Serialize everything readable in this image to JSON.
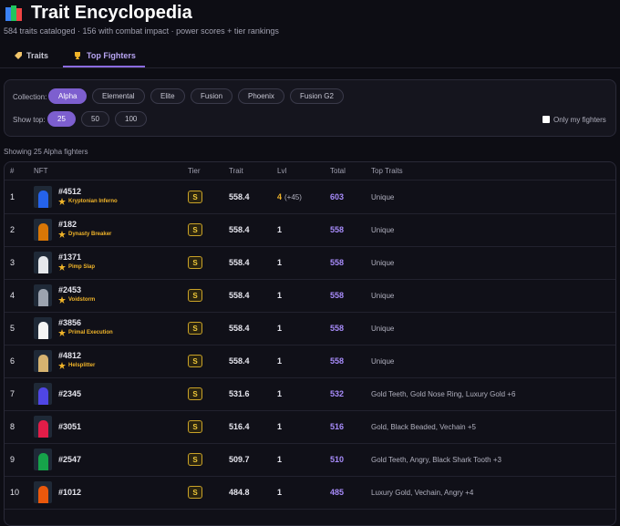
{
  "header": {
    "title": "Trait Encyclopedia",
    "subtitle": "584 traits cataloged · 156 with combat impact · power scores + tier rankings"
  },
  "tabs": [
    {
      "label": "Traits",
      "active": false
    },
    {
      "label": "Top Fighters",
      "active": true
    }
  ],
  "filters": {
    "collection_label": "Collection:",
    "collections": [
      {
        "label": "Alpha",
        "active": true
      },
      {
        "label": "Elemental",
        "active": false
      },
      {
        "label": "Elite",
        "active": false
      },
      {
        "label": "Fusion",
        "active": false
      },
      {
        "label": "Phoenix",
        "active": false
      },
      {
        "label": "Fusion G2",
        "active": false
      }
    ],
    "show_top_label": "Show top:",
    "show_top": [
      {
        "label": "25",
        "active": true
      },
      {
        "label": "50",
        "active": false
      },
      {
        "label": "100",
        "active": false
      }
    ],
    "checkbox_label": "Only my fighters"
  },
  "status": "Showing 25 Alpha fighters",
  "table": {
    "columns": [
      "#",
      "NFT",
      "Tier",
      "Trait",
      "Lvl",
      "Total",
      "Top Traits"
    ],
    "rows": [
      {
        "rank": 1,
        "id": "#4512",
        "title": "Kryptonian Inferno",
        "tier": "S",
        "trait": 558.4,
        "lvl": 4,
        "lvl_bonus": "(+45)",
        "total": 603,
        "top_traits": "Unique"
      },
      {
        "rank": 2,
        "id": "#182",
        "title": "Dynasty Breaker",
        "tier": "S",
        "trait": 558.4,
        "lvl": 1,
        "total": 558,
        "top_traits": "Unique"
      },
      {
        "rank": 3,
        "id": "#1371",
        "title": "Pimp Slap",
        "tier": "S",
        "trait": 558.4,
        "lvl": 1,
        "total": 558,
        "top_traits": "Unique"
      },
      {
        "rank": 4,
        "id": "#2453",
        "title": "Voidstorm",
        "tier": "S",
        "trait": 558.4,
        "lvl": 1,
        "total": 558,
        "top_traits": "Unique"
      },
      {
        "rank": 5,
        "id": "#3856",
        "title": "Primal Execution",
        "tier": "S",
        "trait": 558.4,
        "lvl": 1,
        "total": 558,
        "top_traits": "Unique"
      },
      {
        "rank": 6,
        "id": "#4812",
        "title": "Helsplitter",
        "tier": "S",
        "trait": 558.4,
        "lvl": 1,
        "total": 558,
        "top_traits": "Unique"
      },
      {
        "rank": 7,
        "id": "#2345",
        "tier": "S",
        "trait": 531.6,
        "lvl": 1,
        "total": 532,
        "top_traits": "Gold Teeth, Gold Nose Ring, Luxury Gold +6"
      },
      {
        "rank": 8,
        "id": "#3051",
        "tier": "S",
        "trait": 516.4,
        "lvl": 1,
        "total": 516,
        "top_traits": "Gold, Black Beaded, Vechain +5"
      },
      {
        "rank": 9,
        "id": "#2547",
        "tier": "S",
        "trait": 509.7,
        "lvl": 1,
        "total": 510,
        "top_traits": "Gold Teeth, Angry, Black Shark Tooth +3"
      },
      {
        "rank": 10,
        "id": "#1012",
        "tier": "S",
        "trait": 484.8,
        "lvl": 1,
        "total": 485,
        "top_traits": "Luxury Gold, Vechain, Angry +4"
      }
    ]
  }
}
